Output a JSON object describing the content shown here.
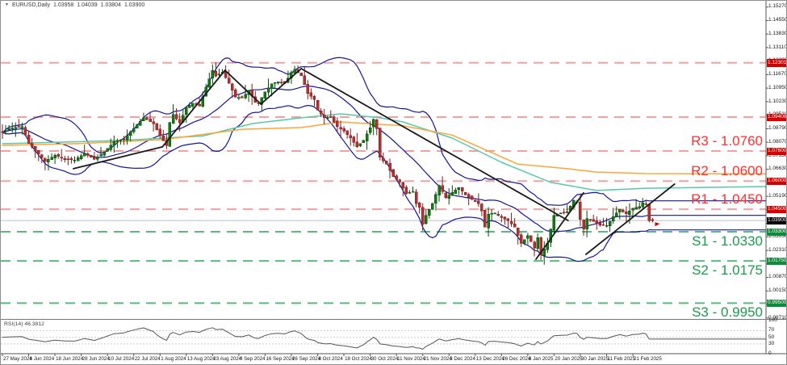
{
  "window": {
    "symbol_title": "EURUSD,Daily",
    "collapse_icon": "▼",
    "ohlc": {
      "open": "1.03958",
      "high": "1.04039",
      "low": "1.03804",
      "close": "1.03900"
    }
  },
  "chart_data": {
    "type": "candlestick",
    "symbol": "EURUSD",
    "timeframe": "Daily",
    "x_axis": {
      "date_labels": [
        "27 May 2024",
        "6 Jun 2024",
        "18 Jun 2024",
        "28 Jun 2024",
        "10 Jul 2024",
        "22 Jul 2024",
        "1 Aug 2024",
        "13 Aug 2024",
        "23 Aug 2024",
        "4 Sep 2024",
        "16 Sep 2024",
        "26 Sep 2024",
        "8 Oct 2024",
        "18 Oct 2024",
        "30 Oct 2024",
        "11 Nov 2024",
        "21 Nov 2024",
        "3 Dec 2024",
        "13 Dec 2024",
        "26 Dec 2024",
        "8 Jan 2025",
        "20 Jan 2025",
        "30 Jan 2025",
        "11 Feb 2025",
        "21 Feb 2025"
      ],
      "candles_per_label": 8
    },
    "y_axis": {
      "tick_labels": [
        "1.15270",
        "1.14550",
        "1.13830",
        "1.13110",
        "1.12390",
        "1.11670",
        "1.10950",
        "1.10230",
        "1.09510",
        "1.08790",
        "1.08070",
        "1.07350",
        "1.06630",
        "1.05910",
        "1.05190",
        "1.04470",
        "1.03750",
        "1.03030",
        "1.02310",
        "1.01590",
        "1.00870",
        "1.00150",
        "0.99430",
        "0.98710"
      ],
      "ylim_main": [
        0.98658,
        1.156
      ]
    },
    "candles": {
      "count": 199,
      "up_color": "#157815",
      "up_border": "#0a4a0a",
      "down_color": "#b43131",
      "down_border": "#7c1e1e",
      "close_waypoints": [
        [
          0,
          1.0858
        ],
        [
          2,
          1.088
        ],
        [
          6,
          1.089
        ],
        [
          8,
          1.08
        ],
        [
          10,
          1.0764
        ],
        [
          13,
          1.0705
        ],
        [
          16,
          1.0738
        ],
        [
          19,
          1.0715
        ],
        [
          22,
          1.0712
        ],
        [
          25,
          1.0748
        ],
        [
          28,
          1.0716
        ],
        [
          31,
          1.0755
        ],
        [
          34,
          1.081
        ],
        [
          37,
          1.0825
        ],
        [
          40,
          1.088
        ],
        [
          43,
          1.0938
        ],
        [
          46,
          1.0905
        ],
        [
          48,
          1.0843
        ],
        [
          50,
          1.0789
        ],
        [
          51,
          1.0911
        ],
        [
          52,
          1.0954
        ],
        [
          54,
          1.091
        ],
        [
          56,
          1.0993
        ],
        [
          58,
          1.1014
        ],
        [
          60,
          1.1
        ],
        [
          62,
          1.11
        ],
        [
          64,
          1.119
        ],
        [
          65,
          1.116
        ],
        [
          67,
          1.118
        ],
        [
          69,
          1.112
        ],
        [
          71,
          1.1048
        ],
        [
          73,
          1.1043
        ],
        [
          75,
          1.1083
        ],
        [
          77,
          1.102
        ],
        [
          78,
          1.1013
        ],
        [
          80,
          1.1076
        ],
        [
          82,
          1.1118
        ],
        [
          84,
          1.113
        ],
        [
          86,
          1.112
        ],
        [
          88,
          1.1178
        ],
        [
          89,
          1.1196
        ],
        [
          91,
          1.1161
        ],
        [
          93,
          1.1067
        ],
        [
          95,
          1.1035
        ],
        [
          96,
          1.0978
        ],
        [
          98,
          1.0937
        ],
        [
          100,
          1.094
        ],
        [
          102,
          1.089
        ],
        [
          104,
          1.0866
        ],
        [
          106,
          1.083
        ],
        [
          108,
          1.0782
        ],
        [
          110,
          1.0818
        ],
        [
          112,
          1.0884
        ],
        [
          113,
          1.093
        ],
        [
          114,
          1.088
        ],
        [
          115,
          1.0727
        ],
        [
          117,
          1.069
        ],
        [
          119,
          1.0623
        ],
        [
          121,
          1.0595
        ],
        [
          123,
          1.0533
        ],
        [
          125,
          1.0545
        ],
        [
          126,
          1.048
        ],
        [
          127,
          1.0461
        ],
        [
          128,
          1.037
        ],
        [
          129,
          1.0417
        ],
        [
          131,
          1.048
        ],
        [
          133,
          1.0577
        ],
        [
          135,
          1.0511
        ],
        [
          137,
          1.054
        ],
        [
          139,
          1.0566
        ],
        [
          141,
          1.0527
        ],
        [
          143,
          1.0501
        ],
        [
          145,
          1.048
        ],
        [
          146,
          1.044
        ],
        [
          147,
          1.0354
        ],
        [
          148,
          1.0424
        ],
        [
          150,
          1.043
        ],
        [
          152,
          1.0406
        ],
        [
          154,
          1.039
        ],
        [
          156,
          1.0355
        ],
        [
          158,
          1.0268
        ],
        [
          160,
          1.031
        ],
        [
          162,
          1.0244
        ],
        [
          163,
          1.03
        ],
        [
          164,
          1.0206
        ],
        [
          166,
          1.027
        ],
        [
          168,
          1.0417
        ],
        [
          170,
          1.043
        ],
        [
          172,
          1.0436
        ],
        [
          174,
          1.0496
        ],
        [
          175,
          1.0491
        ],
        [
          176,
          1.0395
        ],
        [
          177,
          1.0344
        ],
        [
          178,
          1.04
        ],
        [
          180,
          1.0385
        ],
        [
          182,
          1.0365
        ],
        [
          184,
          1.0364
        ],
        [
          186,
          1.041
        ],
        [
          188,
          1.045
        ],
        [
          190,
          1.0425
        ],
        [
          192,
          1.0456
        ],
        [
          194,
          1.0465
        ],
        [
          195,
          1.0484
        ],
        [
          196,
          1.0475
        ],
        [
          197,
          1.039
        ],
        [
          198,
          1.039
        ]
      ],
      "wick_extremes": [
        [
          52,
          "high",
          1.1009
        ],
        [
          89,
          "high",
          1.1214
        ],
        [
          128,
          "low",
          1.0335
        ],
        [
          164,
          "low",
          1.018
        ]
      ],
      "last_bar": {
        "open": 1.03958,
        "high": 1.04039,
        "low": 1.03804,
        "close": 1.039
      }
    },
    "current_price": {
      "value": 1.039,
      "badge": "1.03900",
      "badge_color": "#000000",
      "line_color": "#bcc3ce"
    },
    "levels": {
      "resistance": [
        {
          "label": "R3 - 1.0760",
          "price": 1.076,
          "badge": "1.07600"
        },
        {
          "label": "R2 - 1.0600",
          "price": 1.06,
          "badge": "1.06000"
        },
        {
          "label": "R1 - 1.0450",
          "price": 1.045,
          "badge": "1.04500"
        }
      ],
      "support": [
        {
          "label": "S1 - 1.0330",
          "price": 1.033,
          "badge": "1.03300"
        },
        {
          "label": "S2 - 1.0175",
          "price": 1.0175,
          "badge": "1.01750"
        },
        {
          "label": "S3 - 0.9950",
          "price": 0.995,
          "badge": "0.99500"
        }
      ],
      "other_lines": [
        {
          "price": 1.12301,
          "badge": "1.12301"
        },
        {
          "price": 1.09408,
          "badge": "1.09408"
        }
      ],
      "resistance_text_color": "#ff3030",
      "support_text_color": "#1c9a4e",
      "resistance_line_color": "#f5a0a0",
      "support_line_color": "#5bb97e",
      "badge_red": "#d40000",
      "badge_green": "#0e8a3c"
    },
    "indicators": {
      "bollinger": {
        "period": 20,
        "deviation": 2,
        "color": "#1414a0"
      },
      "ma_fast": {
        "color": "#58c9a5",
        "points": [
          [
            0,
            1.0799
          ],
          [
            36,
            1.0816
          ],
          [
            61,
            1.084
          ],
          [
            76,
            1.0906
          ],
          [
            91,
            1.0937
          ],
          [
            103,
            1.0958
          ],
          [
            115,
            1.0937
          ],
          [
            122,
            1.0915
          ],
          [
            137,
            1.0829
          ],
          [
            152,
            1.07
          ],
          [
            167,
            1.0593
          ],
          [
            181,
            1.055
          ],
          [
            196,
            1.0562
          ],
          [
            233,
            1.0571
          ]
        ]
      },
      "ma_slow": {
        "color": "#ffa438",
        "points": [
          [
            0,
            1.079
          ],
          [
            24,
            1.08
          ],
          [
            49,
            1.0821
          ],
          [
            73,
            1.0876
          ],
          [
            91,
            1.0885
          ],
          [
            103,
            1.0915
          ],
          [
            122,
            1.0895
          ],
          [
            137,
            1.0845
          ],
          [
            157,
            1.069
          ],
          [
            172,
            1.0666
          ],
          [
            181,
            1.0648
          ],
          [
            196,
            1.064
          ],
          [
            233,
            1.0638
          ]
        ]
      }
    },
    "trendlines": {
      "color": "#1a1a1a",
      "width": 1.8,
      "lines": [
        [
          [
            21.6,
            1.0666
          ],
          [
            48.7,
            1.0782
          ]
        ],
        [
          [
            48.7,
            1.0782
          ],
          [
            67.8,
            1.119
          ]
        ],
        [
          [
            67.8,
            1.119
          ],
          [
            78.7,
            1.101
          ]
        ],
        [
          [
            78.7,
            1.101
          ],
          [
            91.0,
            1.1199
          ]
        ],
        [
          [
            91.0,
            1.1199
          ],
          [
            172.3,
            1.039
          ]
        ],
        [
          [
            162.5,
            1.0184
          ],
          [
            177.0,
            1.0537
          ]
        ],
        [
          [
            177.7,
            1.021
          ],
          [
            204.7,
            1.0584
          ]
        ]
      ]
    },
    "rsi": {
      "label": "RSI(14)",
      "value": "46.3812",
      "period": 14,
      "range": [
        0,
        100
      ],
      "guide_levels": [
        30,
        50,
        70
      ],
      "axis_labels": [
        "100",
        "70",
        "50",
        "30",
        "0"
      ],
      "line_color": "#54555a",
      "guide_color": "#bdbdbd"
    }
  }
}
